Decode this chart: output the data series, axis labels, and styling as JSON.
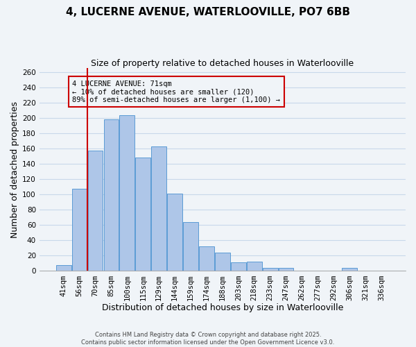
{
  "title": "4, LUCERNE AVENUE, WATERLOOVILLE, PO7 6BB",
  "subtitle": "Size of property relative to detached houses in Waterlooville",
  "xlabel": "Distribution of detached houses by size in Waterlooville",
  "ylabel": "Number of detached properties",
  "bar_labels": [
    "41sqm",
    "56sqm",
    "70sqm",
    "85sqm",
    "100sqm",
    "115sqm",
    "129sqm",
    "144sqm",
    "159sqm",
    "174sqm",
    "188sqm",
    "203sqm",
    "218sqm",
    "233sqm",
    "247sqm",
    "262sqm",
    "277sqm",
    "292sqm",
    "306sqm",
    "321sqm",
    "336sqm"
  ],
  "bar_values": [
    8,
    107,
    157,
    198,
    203,
    148,
    163,
    101,
    64,
    32,
    24,
    11,
    12,
    4,
    4,
    0,
    0,
    0,
    4,
    0,
    0
  ],
  "bar_color": "#aec6e8",
  "bar_edge_color": "#5b9bd5",
  "grid_color": "#c8d8ea",
  "ylim": [
    0,
    265
  ],
  "yticks": [
    0,
    20,
    40,
    60,
    80,
    100,
    120,
    140,
    160,
    180,
    200,
    220,
    240,
    260
  ],
  "vline_color": "#cc0000",
  "vline_x_idx": 1.5,
  "annotation_title": "4 LUCERNE AVENUE: 71sqm",
  "annotation_line1": "← 10% of detached houses are smaller (120)",
  "annotation_line2": "89% of semi-detached houses are larger (1,100) →",
  "annotation_box_color": "#cc0000",
  "footnote1": "Contains HM Land Registry data © Crown copyright and database right 2025.",
  "footnote2": "Contains public sector information licensed under the Open Government Licence v3.0.",
  "background_color": "#f0f4f8",
  "title_fontsize": 11,
  "subtitle_fontsize": 9,
  "axis_label_fontsize": 9,
  "tick_fontsize": 7.5,
  "annotation_fontsize": 7.5,
  "footnote_fontsize": 6
}
